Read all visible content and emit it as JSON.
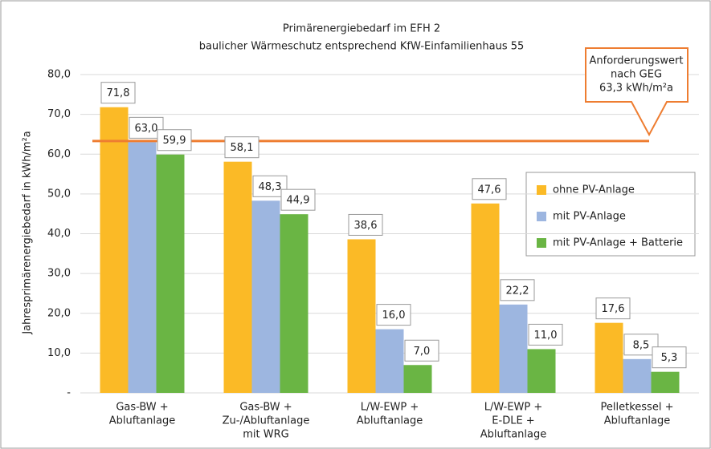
{
  "chart_data": {
    "type": "bar",
    "title": [
      "Primärenergiebedarf im EFH 2",
      "baulicher Wärmeschutz entsprechend KfW-Einfamilienhaus 55"
    ],
    "y_label": "Jahresprimärenergiebedarf in kWh/m²a",
    "categories": [
      [
        "Gas-BW +",
        "Abluftanlage"
      ],
      [
        "Gas-BW +",
        "Zu-/Abluftanlage",
        "mit WRG"
      ],
      [
        "L/W-EWP +",
        "Abluftanlage"
      ],
      [
        "L/W-EWP +",
        "E-DLE +",
        "Abluftanlage"
      ],
      [
        "Pelletkessel +",
        "Abluftanlage"
      ]
    ],
    "series": [
      {
        "name": "ohne PV-Anlage",
        "color": "#fbba26",
        "values": [
          71.8,
          58.1,
          38.6,
          47.6,
          17.6
        ],
        "value_labels": [
          "71,8",
          "58,1",
          "38,6",
          "47,6",
          "17,6"
        ]
      },
      {
        "name": "mit PV-Anlage",
        "color": "#9db6e0",
        "values": [
          63.0,
          48.3,
          16.0,
          22.2,
          8.5
        ],
        "value_labels": [
          "63,0",
          "48,3",
          "16,0",
          "22,2",
          "8,5"
        ]
      },
      {
        "name": "mit PV-Anlage + Batterie",
        "color": "#6ab544",
        "values": [
          59.9,
          44.9,
          7.0,
          11.0,
          5.3
        ],
        "value_labels": [
          "59,9",
          "44,9",
          "7,0",
          "11,0",
          "5,3"
        ]
      }
    ],
    "reference_line": {
      "value": 63.3,
      "color": "#ee7d31"
    },
    "annotation": [
      "Anforderungswert",
      "nach GEG",
      "63,3 kWh/m²a"
    ],
    "ylim": [
      0,
      80
    ],
    "yticks": [
      {
        "value": 0,
        "label": "-"
      },
      {
        "value": 10,
        "label": "10,0"
      },
      {
        "value": 20,
        "label": "20,0"
      },
      {
        "value": 30,
        "label": "30,0"
      },
      {
        "value": 40,
        "label": "40,0"
      },
      {
        "value": 50,
        "label": "50,0"
      },
      {
        "value": 60,
        "label": "60,0"
      },
      {
        "value": 70,
        "label": "70,0"
      },
      {
        "value": 80,
        "label": "80,0"
      }
    ],
    "grid": true
  }
}
